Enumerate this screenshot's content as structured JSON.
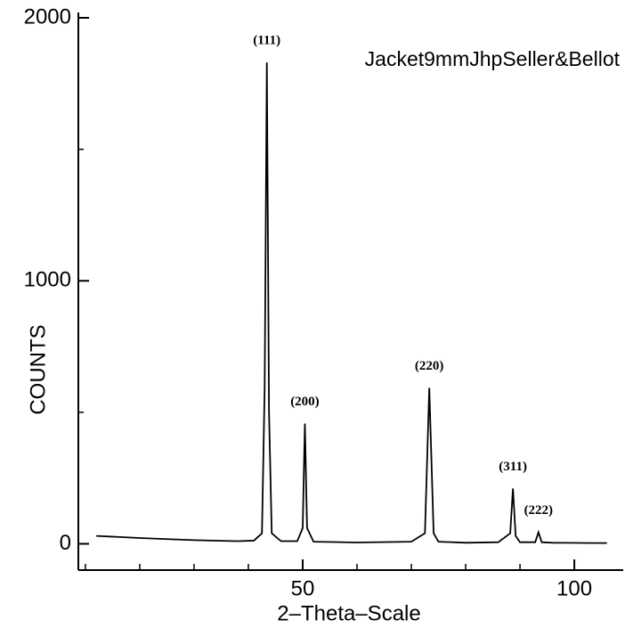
{
  "chart_data": {
    "type": "line",
    "series": [
      {
        "name": "Jacket9mmJhpSeller&Bellot",
        "color": "#000000",
        "x": [
          12,
          20,
          30,
          38,
          41,
          42.5,
          43,
          43.4,
          43.8,
          44.3,
          46,
          49,
          50,
          50.4,
          50.8,
          52,
          60,
          70,
          72.5,
          73.3,
          74.1,
          75,
          80,
          86,
          88.2,
          88.7,
          89.2,
          90,
          92.8,
          93.4,
          94,
          96,
          103,
          106
        ],
        "values": [
          30,
          22,
          14,
          10,
          12,
          40,
          600,
          1830,
          500,
          40,
          10,
          10,
          60,
          457,
          60,
          8,
          5,
          8,
          40,
          593,
          40,
          8,
          4,
          6,
          40,
          210,
          30,
          6,
          6,
          44,
          6,
          4,
          3,
          3
        ]
      }
    ],
    "peaks": [
      {
        "label": "(111)",
        "x": 43.4,
        "counts": 1830
      },
      {
        "label": "(200)",
        "x": 50.4,
        "counts": 457
      },
      {
        "label": "(220)",
        "x": 73.3,
        "counts": 593
      },
      {
        "label": "(311)",
        "x": 88.7,
        "counts": 210
      },
      {
        "label": "(222)",
        "x": 93.4,
        "counts": 44
      }
    ],
    "xlabel": "2–Theta–Scale",
    "ylabel": "COUNTS",
    "xlim": [
      8.7,
      109
    ],
    "ylim": [
      -100,
      2000
    ],
    "xticks": [
      50,
      100
    ],
    "yticks": [
      0,
      1000,
      2000
    ],
    "xminorticks": [
      10,
      20,
      30,
      40,
      60,
      70,
      80,
      90
    ],
    "yminorticks": [
      500,
      1500
    ]
  }
}
